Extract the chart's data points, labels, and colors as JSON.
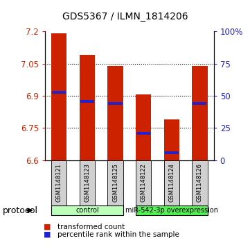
{
  "title": "GDS5367 / ILMN_1814206",
  "samples": [
    "GSM1148121",
    "GSM1148123",
    "GSM1148125",
    "GSM1148122",
    "GSM1148124",
    "GSM1148126"
  ],
  "bar_bottoms": [
    6.6,
    6.6,
    6.6,
    6.6,
    6.6,
    6.6
  ],
  "bar_tops": [
    7.19,
    7.09,
    7.04,
    6.905,
    6.79,
    7.04
  ],
  "blue_marks": [
    6.915,
    6.875,
    6.865,
    6.725,
    6.635,
    6.865
  ],
  "ylim_left": [
    6.6,
    7.2
  ],
  "yticks_left": [
    6.6,
    6.75,
    6.9,
    7.05,
    7.2
  ],
  "ytick_labels_left": [
    "6.6",
    "6.75",
    "6.9",
    "7.05",
    "7.2"
  ],
  "ylim_right": [
    0,
    100
  ],
  "yticks_right": [
    0,
    25,
    50,
    75,
    100
  ],
  "ytick_labels_right": [
    "0",
    "25",
    "50",
    "75",
    "100%"
  ],
  "bar_color": "#cc2200",
  "blue_color": "#2222cc",
  "bar_width": 0.55,
  "groups": [
    {
      "label": "control",
      "n": 3,
      "color": "#bbffbb"
    },
    {
      "label": "miR-542-3p overexpression",
      "n": 3,
      "color": "#55ee55"
    }
  ],
  "sample_box_color": "#d0d0d0",
  "protocol_label": "protocol",
  "legend_red_label": "transformed count",
  "legend_blue_label": "percentile rank within the sample",
  "plot_bg": "#ffffff",
  "axes_bg": "#ffffff",
  "grid_color": "#000000",
  "label_color_left": "#cc2200",
  "label_color_right": "#2222cc",
  "title_fontsize": 10,
  "tick_fontsize": 8.5,
  "sample_fontsize": 6,
  "protocol_fontsize": 9,
  "legend_fontsize": 7.5
}
